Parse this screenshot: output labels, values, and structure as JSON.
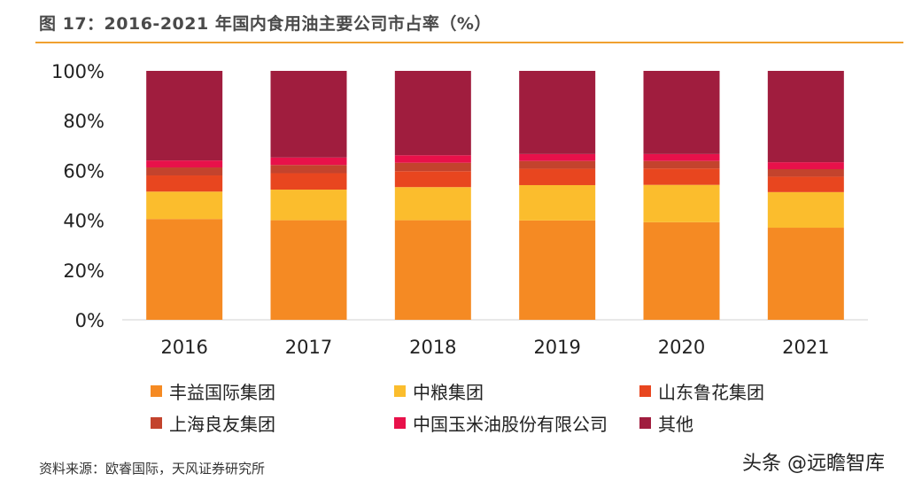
{
  "header": {
    "title": "图 17：2016-2021 年国内食用油主要公司市占率（%）"
  },
  "chart_data": {
    "type": "bar",
    "stacked": true,
    "categories": [
      "2016",
      "2017",
      "2018",
      "2019",
      "2020",
      "2021"
    ],
    "series": [
      {
        "name": "丰益国际集团",
        "color": "#f58a23",
        "values": [
          40.5,
          40.0,
          40.0,
          39.9,
          39.2,
          37.0
        ]
      },
      {
        "name": "中粮集团",
        "color": "#fbbd2d",
        "values": [
          11.0,
          12.3,
          13.3,
          14.2,
          15.0,
          14.3
        ]
      },
      {
        "name": "山东鲁花集团",
        "color": "#e8461f",
        "values": [
          6.5,
          6.6,
          6.4,
          6.6,
          6.6,
          6.2
        ]
      },
      {
        "name": "上海良友集团",
        "color": "#c3432d",
        "values": [
          3.2,
          3.3,
          3.4,
          3.1,
          3.0,
          3.0
        ]
      },
      {
        "name": "中国玉米油股份有限公司",
        "color": "#e8114a",
        "values": [
          2.8,
          3.0,
          3.0,
          2.8,
          2.8,
          2.8
        ]
      },
      {
        "name": "其他",
        "color": "#a01d3e",
        "values": [
          36.0,
          34.8,
          33.9,
          33.4,
          33.4,
          36.7
        ]
      }
    ],
    "yticks": [
      "0%",
      "20%",
      "40%",
      "60%",
      "80%",
      "100%"
    ],
    "ylim": [
      0,
      100
    ],
    "xlabel": "",
    "ylabel": "",
    "grid": false,
    "legend_placement": "bottom"
  },
  "footer": {
    "source": "资料来源：欧睿国际，天风证券研究所",
    "watermark": "头条 @远瞻智库"
  }
}
